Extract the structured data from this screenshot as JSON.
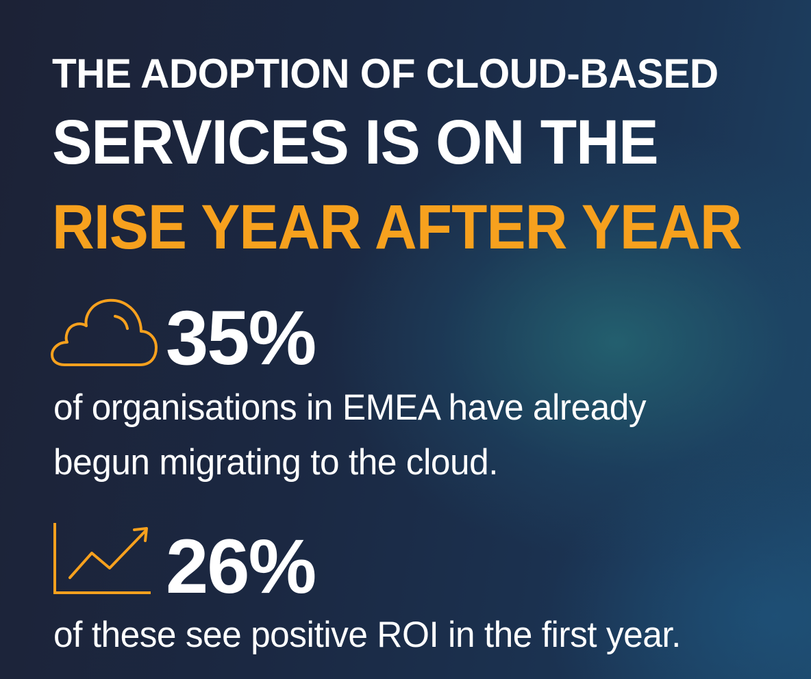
{
  "headline": {
    "line1": "THE ADOPTION OF CLOUD-BASED",
    "line2": "SERVICES IS ON THE",
    "line3": "RISE YEAR AFTER YEAR"
  },
  "stats": [
    {
      "icon": "cloud-icon",
      "value": "35%",
      "description_line1": "of organisations in EMEA have already",
      "description_line2": "begun migrating to the cloud."
    },
    {
      "icon": "line-chart-icon",
      "value": "26%",
      "description_line1": "of these see positive ROI in the first year."
    }
  ],
  "colors": {
    "accent": "#f7a11e",
    "text": "#ffffff",
    "background": "#1b2a45"
  }
}
